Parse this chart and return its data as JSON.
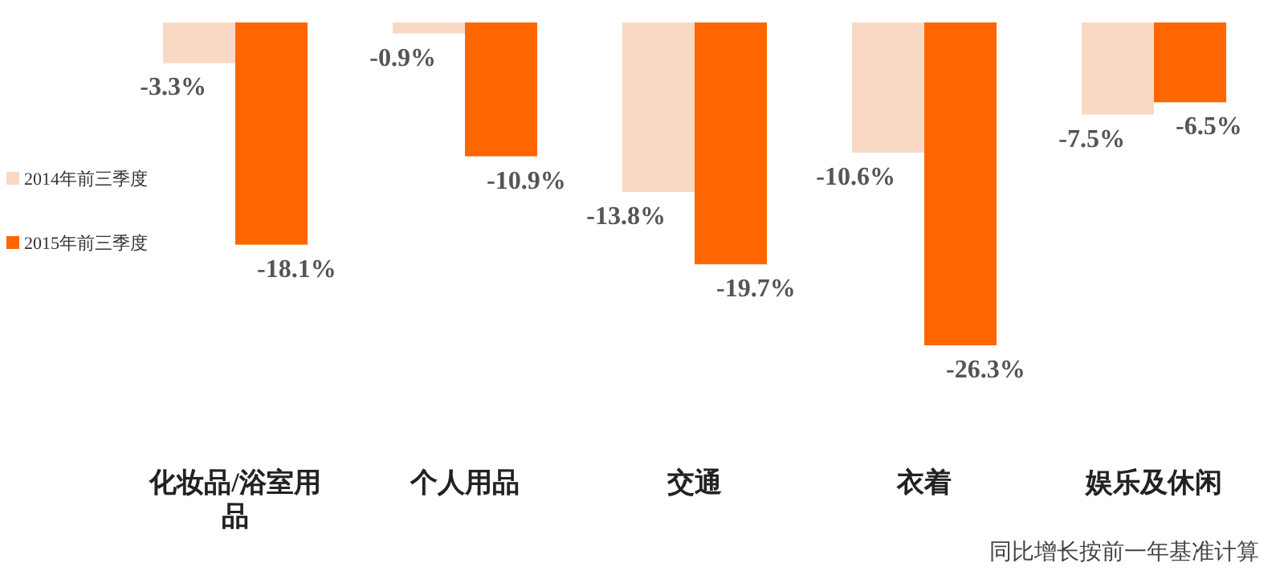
{
  "chart_data": {
    "type": "bar",
    "categories": [
      "化妆品/浴室用品",
      "个人用品",
      "交通",
      "衣着",
      "娱乐及休闲"
    ],
    "series": [
      {
        "name": "2014年前三季度",
        "color": "#f9d9c4",
        "values": [
          -3.3,
          -0.9,
          -13.8,
          -10.6,
          -7.5
        ],
        "value_labels": [
          "-3.3%",
          "-0.9%",
          "-13.8%",
          "-10.6%",
          "-7.5%"
        ]
      },
      {
        "name": "2015年前三季度",
        "color": "#ff6600",
        "values": [
          -18.1,
          -10.9,
          -19.7,
          -26.3,
          -6.5
        ],
        "value_labels": [
          "-18.1%",
          "-10.9%",
          "-19.7%",
          "-26.3%",
          "-6.5%"
        ]
      }
    ],
    "legend": "left",
    "annotations": [
      "同比增长按前一年基准计算"
    ]
  }
}
